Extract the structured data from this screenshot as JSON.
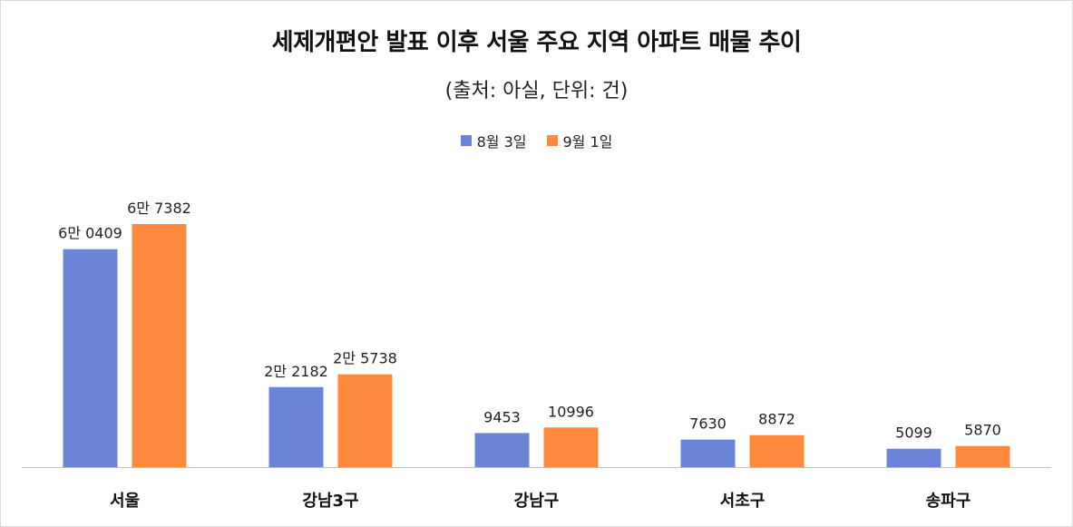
{
  "title": "세제개편안 발표 이후 서울 주요 지역 아파트 매물 추이",
  "subtitle": "(출처: 아실, 단위: 건)",
  "colors": {
    "series1": "#6a84d8",
    "series2": "#ff8a3d",
    "axis": "#bfbfbf"
  },
  "chart_data": {
    "type": "bar",
    "title": "세제개편안 발표 이후 서울 주요 지역 아파트 매물 추이",
    "subtitle": "(출처: 아실, 단위: 건)",
    "categories": [
      "서울",
      "강남3구",
      "강남구",
      "서초구",
      "송파구"
    ],
    "series": [
      {
        "name": "8월 3일",
        "values": [
          60409,
          22182,
          9453,
          7630,
          5099
        ],
        "labels": [
          "6만 0409",
          "2만 2182",
          "9453",
          "7630",
          "5099"
        ]
      },
      {
        "name": "9월 1일",
        "values": [
          67382,
          25738,
          10996,
          8872,
          5870
        ],
        "labels": [
          "6만 7382",
          "2만 5738",
          "10996",
          "8872",
          "5870"
        ]
      }
    ],
    "ylim": [
      0,
      67382
    ],
    "grid": false,
    "legend_position": "top-center"
  }
}
